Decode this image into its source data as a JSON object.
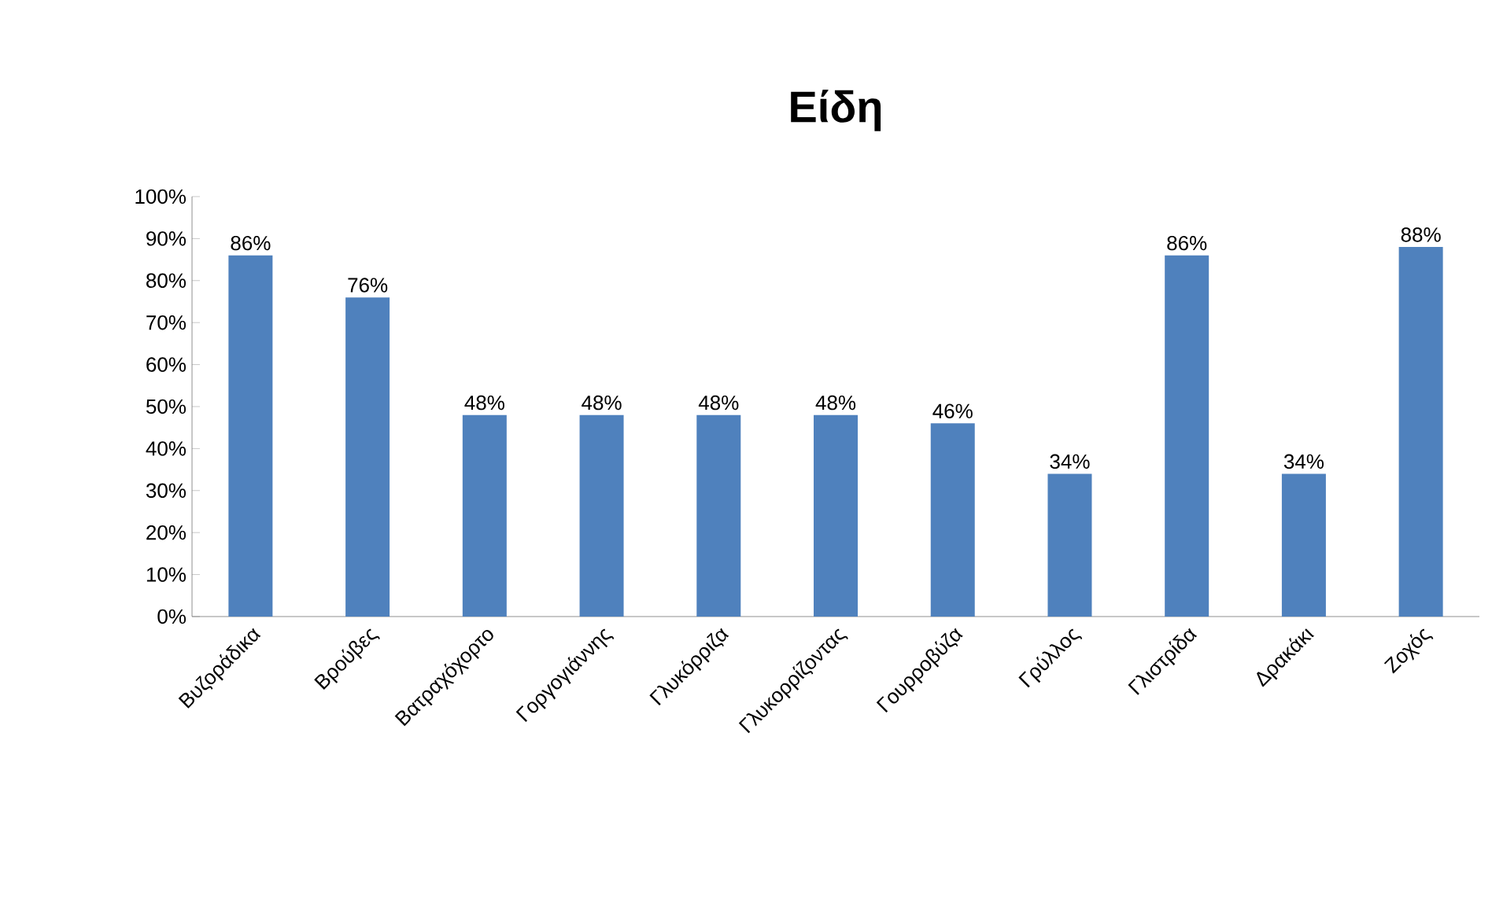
{
  "chart_data": {
    "type": "bar",
    "title": "Είδη",
    "categories": [
      "Βυζοράδικα",
      "Βρούβες",
      "Βατραχόχορτο",
      "Γοργογιάννης",
      "Γλυκόρριζα",
      "Γλυκορρίζοντας",
      "Γουρροβύζα",
      "Γρύλλος",
      "Γλιστρίδα",
      "Δρακάκι",
      "Ζοχός"
    ],
    "values": [
      86,
      76,
      48,
      48,
      48,
      48,
      46,
      34,
      86,
      34,
      88
    ],
    "value_labels": [
      "86%",
      "76%",
      "48%",
      "48%",
      "48%",
      "48%",
      "46%",
      "34%",
      "86%",
      "34%",
      "88%"
    ],
    "color": "#4f81bd",
    "ylim": [
      0,
      100
    ],
    "yticks": [
      {
        "value": 0,
        "label": "0%"
      },
      {
        "value": 10,
        "label": "10%"
      },
      {
        "value": 20,
        "label": "20%"
      },
      {
        "value": 30,
        "label": "30%"
      },
      {
        "value": 40,
        "label": "40%"
      },
      {
        "value": 50,
        "label": "50%"
      },
      {
        "value": 60,
        "label": "60%"
      },
      {
        "value": 70,
        "label": "70%"
      },
      {
        "value": 80,
        "label": "80%"
      },
      {
        "value": 90,
        "label": "90%"
      },
      {
        "value": 100,
        "label": "100%"
      }
    ],
    "grid": false
  }
}
